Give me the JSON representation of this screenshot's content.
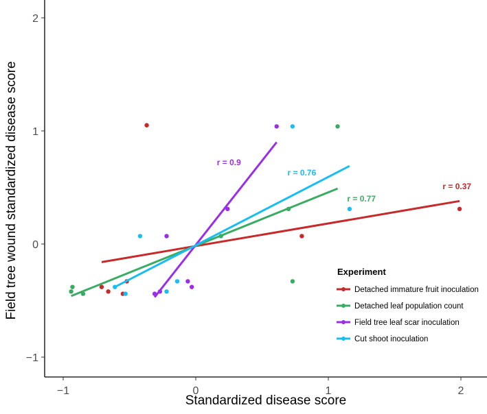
{
  "chart_data": {
    "type": "scatter",
    "xlabel": "Standardized disease score",
    "ylabel": "Field tree wound standardized disease score",
    "xlim": [
      -1.14,
      2.2
    ],
    "ylim": [
      -1.18,
      2.16
    ],
    "xticks": [
      -1,
      0,
      1,
      2
    ],
    "yticks": [
      -1,
      0,
      1,
      2
    ],
    "xtick_labels": [
      "−1",
      "0",
      "1",
      "2"
    ],
    "ytick_labels": [
      "−1",
      "0",
      "1",
      "2"
    ],
    "grid": false,
    "legend": {
      "title": "Experiment",
      "placement": "bottom-right"
    },
    "series": [
      {
        "name": "Detached immature fruit inoculation",
        "color": "#c62a2a",
        "r_label": "r = 0.37",
        "r_pos": [
          1.97,
          0.51
        ],
        "points": [
          [
            -0.37,
            1.05
          ],
          [
            0.8,
            0.07
          ],
          [
            1.99,
            0.31
          ],
          [
            -0.71,
            -0.38
          ],
          [
            -0.66,
            -0.42
          ],
          [
            -0.55,
            -0.44
          ],
          [
            -0.52,
            -0.33
          ]
        ],
        "fit": [
          [
            -0.71,
            -0.16
          ],
          [
            1.99,
            0.38
          ]
        ]
      },
      {
        "name": "Detached leaf population count",
        "color": "#3aab63",
        "r_label": "r = 0.77",
        "r_pos": [
          1.25,
          0.4
        ],
        "points": [
          [
            -0.93,
            -0.38
          ],
          [
            -0.94,
            -0.42
          ],
          [
            -0.85,
            -0.44
          ],
          [
            1.07,
            1.04
          ],
          [
            0.7,
            0.31
          ],
          [
            0.19,
            0.07
          ],
          [
            0.73,
            -0.33
          ]
        ],
        "fit": [
          [
            -0.94,
            -0.46
          ],
          [
            1.07,
            0.49
          ]
        ]
      },
      {
        "name": "Field tree leaf scar inoculation",
        "color": "#9a2ee6",
        "r_label": "r = 0.9",
        "r_pos": [
          0.25,
          0.72
        ],
        "points": [
          [
            0.61,
            1.04
          ],
          [
            0.24,
            0.31
          ],
          [
            -0.22,
            0.07
          ],
          [
            -0.31,
            -0.44
          ],
          [
            -0.27,
            -0.42
          ],
          [
            -0.06,
            -0.33
          ],
          [
            -0.03,
            -0.38
          ]
        ],
        "fit": [
          [
            -0.31,
            -0.47
          ],
          [
            0.61,
            0.9
          ]
        ]
      },
      {
        "name": "Cut shoot inoculation",
        "color": "#19bdf0",
        "r_label": "r = 0.76",
        "r_pos": [
          0.8,
          0.63
        ],
        "points": [
          [
            0.73,
            1.04
          ],
          [
            1.16,
            0.31
          ],
          [
            -0.42,
            0.07
          ],
          [
            -0.61,
            -0.38
          ],
          [
            -0.53,
            -0.44
          ],
          [
            -0.14,
            -0.33
          ],
          [
            -0.22,
            -0.42
          ]
        ],
        "fit": [
          [
            -0.61,
            -0.38
          ],
          [
            1.16,
            0.69
          ]
        ]
      }
    ]
  }
}
